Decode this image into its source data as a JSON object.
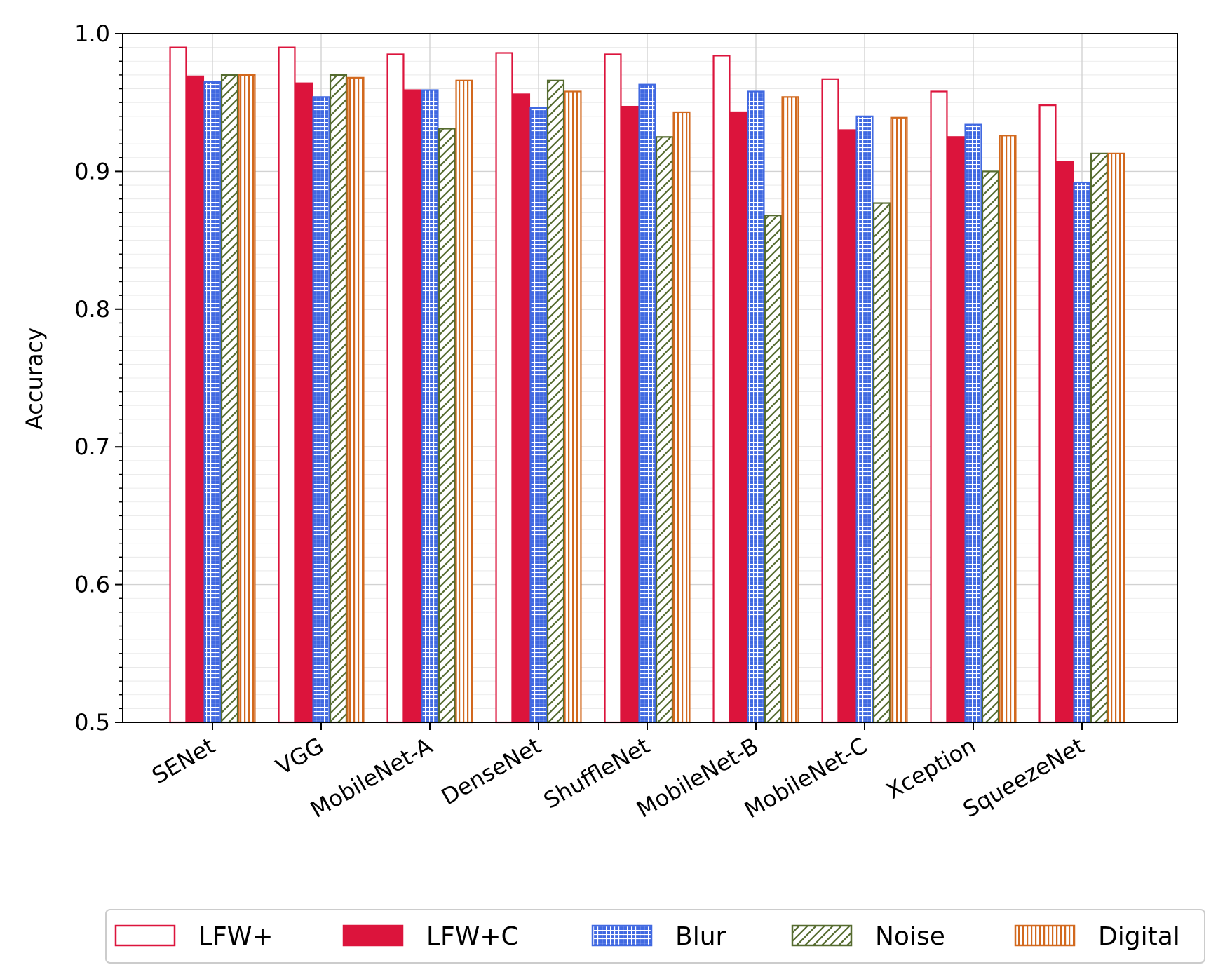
{
  "chart_data": {
    "type": "bar",
    "xlabel": "",
    "ylabel": "Accuracy",
    "ylim": [
      0.5,
      1.0
    ],
    "yticks": [
      "0.5",
      "0.6",
      "0.7",
      "0.8",
      "0.9",
      "1.0"
    ],
    "grid": true,
    "legend_placement": "bottom",
    "categories": [
      "SENet",
      "VGG",
      "MobileNet-A",
      "DenseNet",
      "ShuffleNet",
      "MobileNet-B",
      "MobileNet-C",
      "Xception",
      "SqueezeNet"
    ],
    "series": [
      {
        "name": "LFW+",
        "style": "outline",
        "color": "#dc143c",
        "values": [
          0.99,
          0.99,
          0.985,
          0.986,
          0.985,
          0.984,
          0.967,
          0.958,
          0.948
        ]
      },
      {
        "name": "LFW+C",
        "style": "solid",
        "color": "#dc143c",
        "values": [
          0.969,
          0.964,
          0.959,
          0.956,
          0.947,
          0.943,
          0.93,
          0.925,
          0.907
        ]
      },
      {
        "name": "Blur",
        "style": "grid",
        "color": "#4169e1",
        "values": [
          0.965,
          0.954,
          0.959,
          0.946,
          0.963,
          0.958,
          0.94,
          0.934,
          0.892
        ]
      },
      {
        "name": "Noise",
        "style": "hatch",
        "color": "#556b2f",
        "values": [
          0.97,
          0.97,
          0.931,
          0.966,
          0.925,
          0.868,
          0.877,
          0.9,
          0.913
        ]
      },
      {
        "name": "Digital",
        "style": "vlines",
        "color": "#d2691e",
        "values": [
          0.97,
          0.968,
          0.966,
          0.958,
          0.943,
          0.954,
          0.939,
          0.926,
          0.913
        ]
      }
    ]
  }
}
